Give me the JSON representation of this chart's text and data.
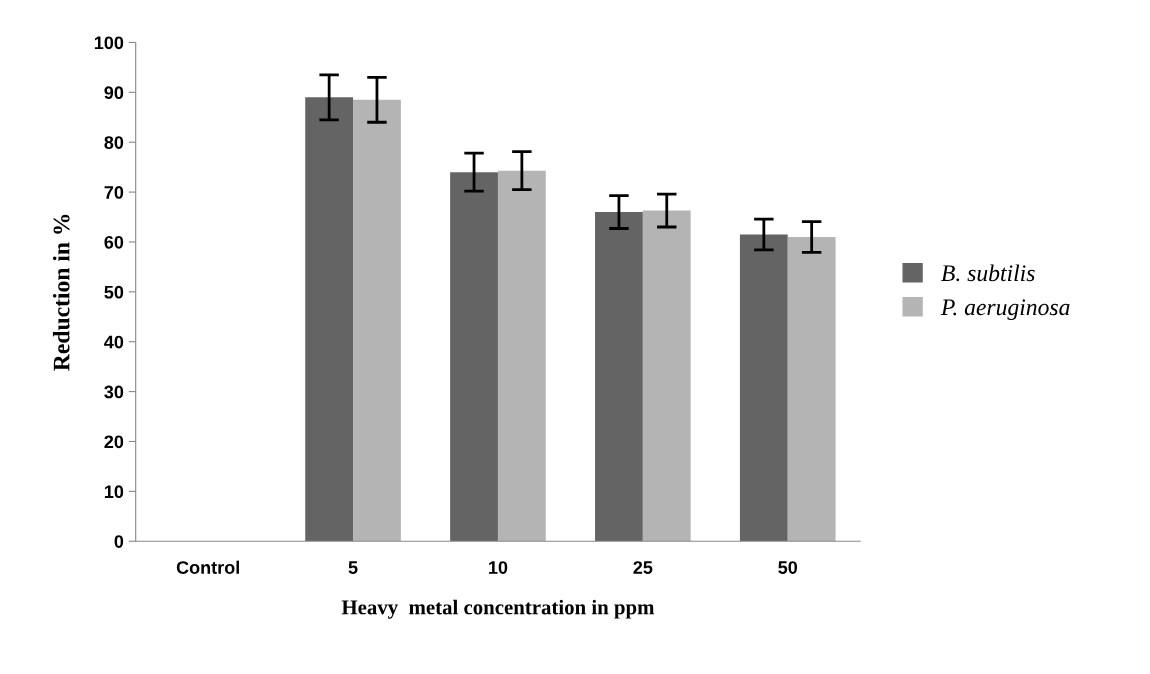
{
  "chart_data": {
    "type": "bar",
    "xlabel": "Heavy  metal concentration in ppm",
    "ylabel": "Reduction in %",
    "categories": [
      "Control",
      "5",
      "10",
      "25",
      "50"
    ],
    "series": [
      {
        "name": "B. subtilis",
        "color": "#646464",
        "values": [
          0,
          89,
          74,
          66,
          61.5
        ],
        "errors": [
          null,
          4.5,
          3.8,
          3.3,
          3.1
        ]
      },
      {
        "name": "P. aeruginosa",
        "color": "#b4b4b4",
        "values": [
          0,
          88.5,
          74.3,
          66.3,
          61
        ],
        "errors": [
          null,
          4.5,
          3.8,
          3.3,
          3.1
        ]
      }
    ],
    "ylim": [
      0,
      100
    ],
    "yticks": [
      0,
      10,
      20,
      30,
      40,
      50,
      60,
      70,
      80,
      90,
      100
    ],
    "grid": false,
    "legend": "right"
  }
}
